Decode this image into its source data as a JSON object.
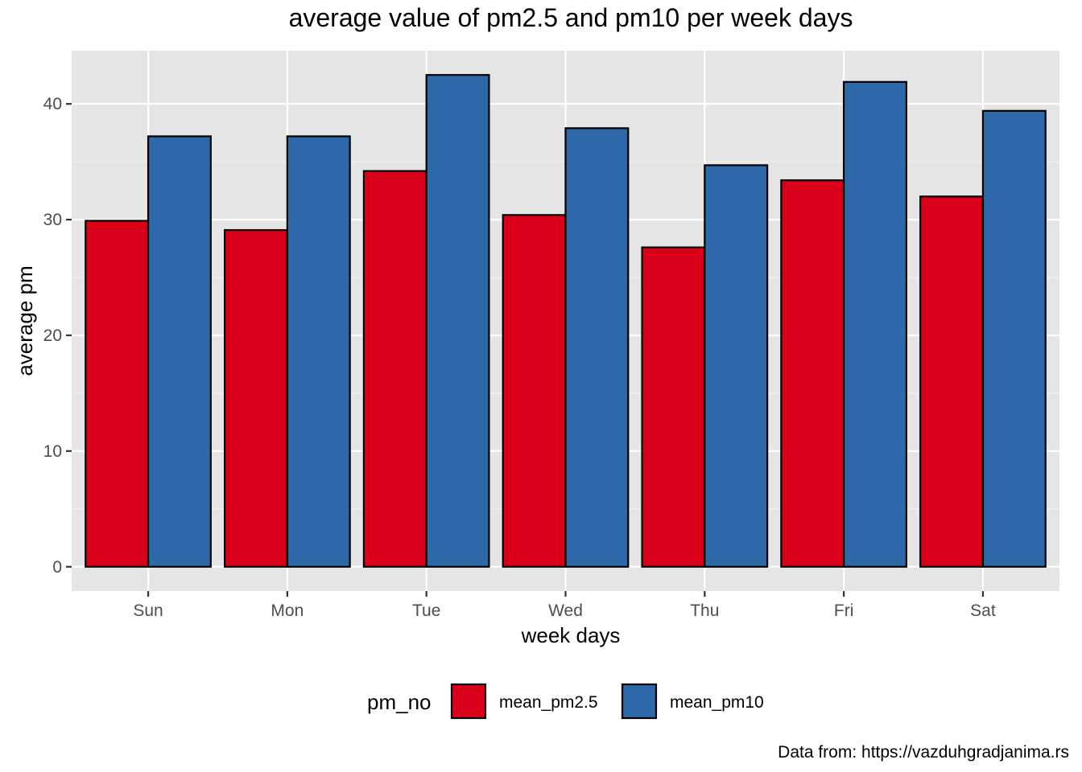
{
  "chart_data": {
    "type": "bar",
    "title": "average value of pm2.5 and pm10 per week days",
    "xlabel": "week days",
    "ylabel": "average pm",
    "categories": [
      "Sun",
      "Mon",
      "Tue",
      "Wed",
      "Thu",
      "Fri",
      "Sat"
    ],
    "series": [
      {
        "name": "mean_pm2.5",
        "color": "#DA001A",
        "values": [
          29.9,
          29.1,
          34.2,
          30.4,
          27.6,
          33.4,
          32.0
        ]
      },
      {
        "name": "mean_pm10",
        "color": "#2D69A8",
        "values": [
          37.2,
          37.2,
          42.5,
          37.9,
          34.7,
          41.9,
          39.4
        ]
      }
    ],
    "ylim": [
      -2.1,
      44.6
    ],
    "yticks": [
      "0",
      "10",
      "20",
      "30",
      "40"
    ],
    "grid": true,
    "panel_background": "#E5E5E5",
    "legend": {
      "title": "pm_no",
      "position": "bottom"
    },
    "caption": "Data from: https://vazduhgradjanima.rs"
  }
}
